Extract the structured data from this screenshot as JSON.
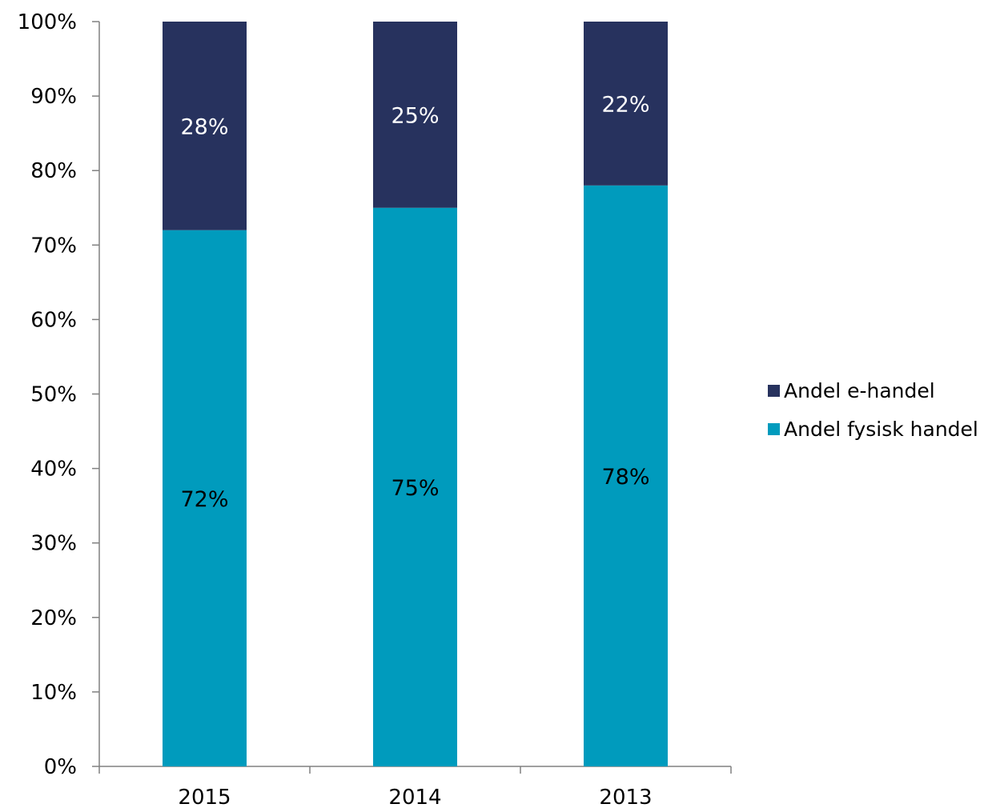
{
  "chart_data": {
    "type": "bar",
    "stacked": true,
    "categories": [
      "2015",
      "2014",
      "2013"
    ],
    "series": [
      {
        "name": "Andel fysisk handel",
        "values": [
          72,
          75,
          78
        ],
        "labels": [
          "72%",
          "75%",
          "78%"
        ],
        "color": "#009bbd",
        "label_color": "#000000"
      },
      {
        "name": "Andel e-handel",
        "values": [
          28,
          25,
          22
        ],
        "labels": [
          "28%",
          "25%",
          "22%"
        ],
        "color": "#27325e",
        "label_color": "#ffffff"
      }
    ],
    "ylim": [
      0,
      100
    ],
    "yticks": [
      0,
      10,
      20,
      30,
      40,
      50,
      60,
      70,
      80,
      90,
      100
    ],
    "ytick_labels": [
      "0%",
      "10%",
      "20%",
      "30%",
      "40%",
      "50%",
      "60%",
      "70%",
      "80%",
      "90%",
      "100%"
    ],
    "legend_position": "right",
    "legend_order": [
      "Andel e-handel",
      "Andel fysisk handel"
    ],
    "grid": false,
    "axis_color": "#808080"
  }
}
